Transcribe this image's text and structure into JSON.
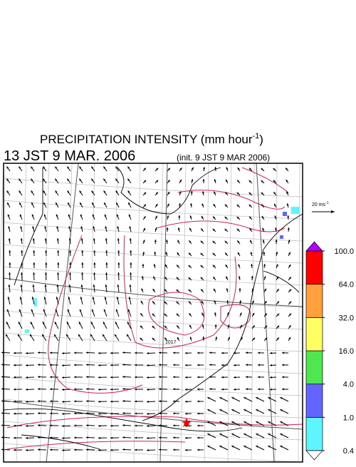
{
  "title": {
    "main": "PRECIPITATION INTENSITY (mm hour",
    "exponent": "-1",
    "end": ")"
  },
  "valid_time": "13 JST 9 MAR. 2006",
  "init_time": "(init. 9 JST 9 MAR  2006)",
  "wind_scale": {
    "label": "20 ms",
    "exponent": "-1"
  },
  "map": {
    "contour_labels": [
      "1017"
    ]
  },
  "colorbar": {
    "levels": [
      {
        "value": 0.4,
        "label": "0.4"
      },
      {
        "value": 1,
        "label": "1.0"
      },
      {
        "value": 4,
        "label": "4.0"
      },
      {
        "value": 16,
        "label": "16.0"
      },
      {
        "value": 32,
        "label": "32.0"
      },
      {
        "value": 64,
        "label": "64.0"
      },
      {
        "value": 100,
        "label": "100.0"
      }
    ],
    "colors": [
      "#5ff5ff",
      "#6464ff",
      "#50e650",
      "#ffff64",
      "#ffa03c",
      "#ff0000"
    ],
    "under_color": "#ffffff",
    "over_color": "#b400ff"
  }
}
